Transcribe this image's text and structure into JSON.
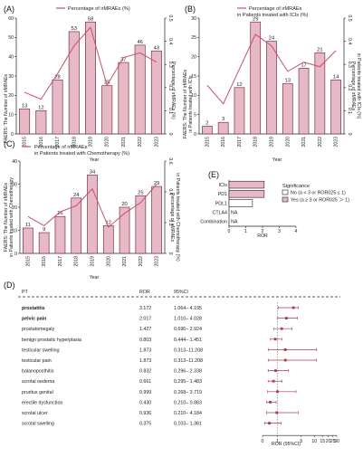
{
  "panelA": {
    "panel_label": "(A)",
    "legend": "Percentage of irMRAEs (%)",
    "chart_data": {
      "type": "bar",
      "categories": [
        "2015",
        "2016",
        "2017",
        "2018",
        "2019",
        "2020",
        "2021",
        "2022",
        "2023"
      ],
      "values": [
        13,
        12,
        28,
        53,
        58,
        25,
        37,
        46,
        43
      ],
      "line_values": [
        0.18,
        0.15,
        0.26,
        0.38,
        0.46,
        0.21,
        0.33,
        0.35,
        0.31
      ],
      "xlabel": "Year",
      "ylabel": "FAERS: The Number of irMRAEs",
      "y2label": "Percentage of irMRAEs (%)",
      "ylim": [
        0,
        60
      ],
      "y2lim": [
        0,
        0.5
      ],
      "yticks": [
        0,
        10,
        20,
        30,
        40,
        50,
        60
      ],
      "y2ticks": [
        "0",
        "0.1",
        "0.2",
        "0.3",
        "0.4",
        "0.5"
      ]
    }
  },
  "panelB": {
    "panel_label": "(B)",
    "legend_line1": "Percentage of irMRAEs",
    "legend_line2": "in Patients treated with ICIs (%)",
    "chart_data": {
      "type": "bar",
      "categories": [
        "2015",
        "2016",
        "2017",
        "2018",
        "2019",
        "2020",
        "2021",
        "2022",
        "2023"
      ],
      "values": [
        2,
        3,
        12,
        29,
        24,
        13,
        17,
        21,
        14
      ],
      "line_values": [
        0.21,
        0.13,
        0.28,
        0.43,
        0.38,
        0.27,
        0.31,
        0.29,
        0.36
      ],
      "xlabel": "Year",
      "ylabel_line1": "FAERS: The Number of irMRAEs",
      "ylabel_line2": "in Patients treated with ICIs",
      "y2label_line1": "Percentage of irMRAEs",
      "y2label_line2": "in Patients treated with ICIs (%)",
      "ylim": [
        0,
        30
      ],
      "y2lim": [
        0,
        0.5
      ],
      "yticks": [
        0,
        5,
        10,
        15,
        20,
        25,
        30
      ],
      "y2ticks": [
        "0",
        "0.1",
        "0.2",
        "0.3",
        "0.4",
        "0.5"
      ]
    }
  },
  "panelC": {
    "panel_label": "(C)",
    "legend_line1": "Percentage of irMRAEs",
    "legend_line2": "in Patients treated with Chemotherapy (%)",
    "chart_data": {
      "type": "bar",
      "categories": [
        "2015",
        "2016",
        "2017",
        "2018",
        "2019",
        "2020",
        "2021",
        "2022",
        "2023"
      ],
      "values": [
        11,
        9,
        16,
        24,
        34,
        12,
        20,
        25,
        29
      ],
      "line_values": [
        0.24,
        0.18,
        0.27,
        0.31,
        0.42,
        0.17,
        0.26,
        0.33,
        0.45
      ],
      "xlabel": "Year",
      "ylabel_line1": "FAERS: The Number of irMRAEs",
      "ylabel_line2": "in Patients treated with Chemotherapy",
      "y2label_line1": "Percentage of irMRAEs",
      "y2label_line2": "in Patients treated with Chemotherapy (%)",
      "ylim": [
        0,
        40
      ],
      "y2lim": [
        0,
        0.6
      ],
      "yticks": [
        0,
        10,
        20,
        30,
        40
      ],
      "y2ticks": [
        "0",
        "0.2",
        "0.4",
        "0.6"
      ]
    }
  },
  "panelE": {
    "panel_label": "(E)",
    "legend_title": "Significance",
    "legend_no": "No (a < 3 or ROR025 ≤ 1)",
    "legend_yes": "Yes (a ≥ 3 or ROR025 ＞ 1)",
    "chart_data": {
      "type": "bar",
      "categories": [
        "ICIs",
        "PD1",
        "PDL1",
        "CTLA4",
        "Combination"
      ],
      "values": [
        2.1,
        2.1,
        1.4,
        null,
        null
      ],
      "labels": [
        "",
        "",
        "",
        "NA",
        "NA"
      ],
      "significant": [
        true,
        true,
        false,
        false,
        false
      ],
      "xlabel": "ROR",
      "xlim": [
        0,
        4
      ],
      "xticks": [
        0,
        1,
        2,
        3,
        4
      ]
    }
  },
  "panelD": {
    "panel_label": "(D)",
    "headers": {
      "pt": "PT",
      "ror": "ROR",
      "ci": "95%CI"
    },
    "xlabel": "ROR (95%CI)",
    "xticks": [
      "0",
      "1",
      "5",
      "10",
      "15",
      "20",
      "25",
      "30"
    ],
    "chart_data": {
      "type": "table",
      "rows": [
        {
          "pt": "prostatitis",
          "ror": "3.172",
          "ci": "1.064– 4.195",
          "bold": true,
          "est": 3.172,
          "lo": 1.064,
          "hi": 4.195
        },
        {
          "pt": "pelvic pain",
          "ror": "2.017",
          "ci": "1.010– 4.028",
          "bold": true,
          "est": 2.017,
          "lo": 1.01,
          "hi": 4.028
        },
        {
          "pt": "prostatomegaly",
          "ror": "1.427",
          "ci": "0.696– 2.924",
          "bold": false,
          "est": 1.427,
          "lo": 0.696,
          "hi": 2.924
        },
        {
          "pt": "benign prostatic hyperplasia",
          "ror": "0.803",
          "ci": "0.444– 1.451",
          "bold": false,
          "est": 0.803,
          "lo": 0.444,
          "hi": 1.451
        },
        {
          "pt": "testicular swelling",
          "ror": "1.873",
          "ci": "0.313–11.208",
          "bold": false,
          "est": 1.873,
          "lo": 0.313,
          "hi": 11.208
        },
        {
          "pt": "testicular pain",
          "ror": "1.873",
          "ci": "0.313–11.208",
          "bold": false,
          "est": 1.873,
          "lo": 0.313,
          "hi": 11.208
        },
        {
          "pt": "balanoposthitis",
          "ror": "0.832",
          "ci": "0.296– 2.338",
          "bold": false,
          "est": 0.832,
          "lo": 0.296,
          "hi": 2.338
        },
        {
          "pt": "scrotal oedema",
          "ror": "0.661",
          "ci": "0.295– 1.483",
          "bold": false,
          "est": 0.661,
          "lo": 0.295,
          "hi": 1.483
        },
        {
          "pt": "pruritus genital",
          "ror": "0.999",
          "ci": "0.268– 3.719",
          "bold": false,
          "est": 0.999,
          "lo": 0.268,
          "hi": 3.719
        },
        {
          "pt": "erectile dysfunction",
          "ror": "0.430",
          "ci": "0.210– 0.883",
          "bold": false,
          "est": 0.43,
          "lo": 0.21,
          "hi": 0.883
        },
        {
          "pt": "scrotal ulcer",
          "ror": "0.936",
          "ci": "0.210– 4.184",
          "bold": false,
          "est": 0.936,
          "lo": 0.21,
          "hi": 4.184
        },
        {
          "pt": "scrotal swelling",
          "ror": "0.375",
          "ci": "0.103– 1.361",
          "bold": false,
          "est": 0.375,
          "lo": 0.103,
          "hi": 1.361
        }
      ]
    }
  },
  "colors": {
    "bar_fill": "#e7b9c6",
    "bar_stroke": "#7a3344",
    "line": "#c8506a",
    "forest": "#a63b52",
    "axis": "#222222"
  }
}
